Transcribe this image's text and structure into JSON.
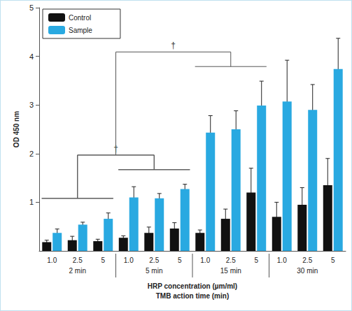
{
  "chart_data": {
    "type": "bar",
    "y_label": "OD 450 nm",
    "x_label": "HRP concentration (µm/ml)",
    "x_label2": "TMB action time (min)",
    "categories": [
      "1.0",
      "2.5",
      "5",
      "1.0",
      "2.5",
      "5",
      "1.0",
      "2.5",
      "5",
      "1.0",
      "2.5",
      "5"
    ],
    "group_labels": [
      "2 min",
      "2 min",
      "2 min",
      "5 min",
      "5 min",
      "5 min",
      "15 min",
      "15 min",
      "15 min",
      "30 min",
      "30 min",
      "30 min"
    ],
    "series": [
      {
        "name": "Control",
        "color": "#111111",
        "values": [
          0.18,
          0.22,
          0.2,
          0.27,
          0.37,
          0.46,
          0.37,
          0.66,
          1.2,
          0.7,
          0.95,
          1.35
        ],
        "error": [
          0.04,
          0.08,
          0.04,
          0.04,
          0.12,
          0.12,
          0.06,
          0.2,
          0.5,
          0.3,
          0.35,
          0.55
        ]
      },
      {
        "name": "Sample",
        "color": "#29a9e1",
        "values": [
          0.37,
          0.54,
          0.66,
          1.1,
          1.08,
          1.27,
          2.43,
          2.5,
          2.99,
          3.07,
          2.9,
          3.74
        ],
        "error": [
          0.08,
          0.05,
          0.12,
          0.22,
          0.1,
          0.1,
          0.35,
          0.38,
          0.5,
          0.85,
          0.52,
          0.63
        ]
      }
    ],
    "ylim": [
      0,
      5
    ],
    "yticks": [
      1,
      2,
      3,
      4,
      5
    ],
    "grid": false,
    "legend": "upper left",
    "annotations": [
      {
        "text": "†",
        "between": [
          "2 min",
          "5 min"
        ]
      },
      {
        "text": "†",
        "between": [
          [
            "2 min",
            "5 min"
          ],
          "15 min"
        ]
      }
    ]
  }
}
